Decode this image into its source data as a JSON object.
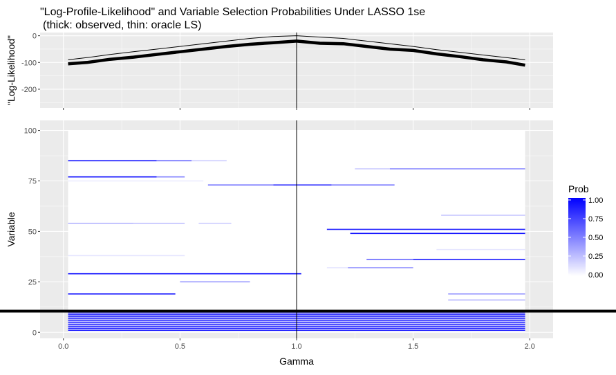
{
  "chart_data": [
    {
      "type": "line",
      "title": "\"Log-Profile-Likelihood\" and Variable Selection Probabilities Under LASSO 1se",
      "subtitle": "(thick: observed, thin: oracle LS)",
      "ylabel": "\"Log-Likelihood\"",
      "xlim": [
        -0.1,
        2.1
      ],
      "ylim": [
        -270,
        12
      ],
      "yticks": [
        0,
        -100,
        -200
      ],
      "ytick_labels": [
        "0",
        "-100",
        "-200"
      ],
      "vline_x": 1.0,
      "grid": true,
      "series": [
        {
          "style": "thick",
          "x": [
            0.02,
            0.1,
            0.2,
            0.3,
            0.4,
            0.5,
            0.6,
            0.7,
            0.8,
            0.9,
            1.0,
            1.1,
            1.2,
            1.3,
            1.4,
            1.5,
            1.6,
            1.7,
            1.8,
            1.9,
            1.98
          ],
          "y": [
            -105,
            -100,
            -88,
            -80,
            -70,
            -60,
            -50,
            -40,
            -32,
            -26,
            -20,
            -28,
            -30,
            -40,
            -50,
            -55,
            -68,
            -78,
            -90,
            -98,
            -110
          ]
        },
        {
          "style": "thin",
          "x": [
            0.02,
            0.1,
            0.2,
            0.3,
            0.4,
            0.5,
            0.6,
            0.7,
            0.8,
            0.9,
            1.0,
            1.1,
            1.2,
            1.3,
            1.4,
            1.5,
            1.6,
            1.7,
            1.8,
            1.9,
            1.98
          ],
          "y": [
            -90,
            -82,
            -70,
            -60,
            -50,
            -40,
            -30,
            -20,
            -10,
            -3,
            0,
            -5,
            -10,
            -20,
            -30,
            -40,
            -52,
            -62,
            -72,
            -82,
            -90
          ]
        }
      ]
    },
    {
      "type": "heatmap",
      "xlabel": "Gamma",
      "ylabel": "Variable",
      "xlim": [
        -0.1,
        2.1
      ],
      "ylim": [
        -3,
        105
      ],
      "xticks": [
        0.0,
        0.5,
        1.0,
        1.5,
        2.0
      ],
      "xtick_labels": [
        "0.0",
        "0.5",
        "1.0",
        "1.5",
        "2.0"
      ],
      "yticks": [
        0,
        25,
        50,
        75,
        100
      ],
      "ytick_labels": [
        "0",
        "25",
        "50",
        "75",
        "100"
      ],
      "hline_y": 10.5,
      "vline_x": 1.0,
      "legend": {
        "title": "Prob",
        "position": "right",
        "ticks": [
          1.0,
          0.75,
          0.5,
          0.25,
          0.0
        ],
        "tick_labels": [
          "1.00",
          "0.75",
          "0.50",
          "0.25",
          "0.00"
        ]
      },
      "rows": [
        {
          "variable": 85,
          "segments": [
            [
              0.02,
              0.4,
              0.95
            ],
            [
              0.4,
              0.55,
              0.6
            ],
            [
              0.55,
              0.7,
              0.2
            ]
          ]
        },
        {
          "variable": 77,
          "segments": [
            [
              0.02,
              0.4,
              0.95
            ],
            [
              0.4,
              0.52,
              0.5
            ]
          ]
        },
        {
          "variable": 75,
          "segments": [
            [
              0.02,
              0.6,
              0.08
            ]
          ]
        },
        {
          "variable": 73,
          "segments": [
            [
              0.62,
              0.9,
              0.6
            ],
            [
              0.9,
              1.15,
              0.9
            ],
            [
              1.15,
              1.42,
              0.6
            ]
          ]
        },
        {
          "variable": 81,
          "segments": [
            [
              1.25,
              1.4,
              0.2
            ],
            [
              1.4,
              1.98,
              0.45
            ]
          ]
        },
        {
          "variable": 58,
          "segments": [
            [
              1.62,
              1.98,
              0.2
            ]
          ]
        },
        {
          "variable": 54,
          "segments": [
            [
              0.02,
              0.3,
              0.3
            ],
            [
              0.3,
              0.52,
              0.25
            ],
            [
              0.58,
              0.72,
              0.2
            ]
          ]
        },
        {
          "variable": 51,
          "segments": [
            [
              1.13,
              1.98,
              0.9
            ]
          ]
        },
        {
          "variable": 49,
          "segments": [
            [
              1.23,
              1.98,
              0.9
            ]
          ]
        },
        {
          "variable": 41,
          "segments": [
            [
              1.6,
              1.98,
              0.1
            ]
          ]
        },
        {
          "variable": 38,
          "segments": [
            [
              0.02,
              0.52,
              0.1
            ]
          ]
        },
        {
          "variable": 36,
          "segments": [
            [
              1.3,
              1.5,
              0.6
            ],
            [
              1.5,
              1.98,
              0.9
            ]
          ]
        },
        {
          "variable": 32,
          "segments": [
            [
              1.13,
              1.22,
              0.1
            ],
            [
              1.22,
              1.5,
              0.4
            ]
          ]
        },
        {
          "variable": 29,
          "segments": [
            [
              0.02,
              1.02,
              0.95
            ]
          ]
        },
        {
          "variable": 25,
          "segments": [
            [
              0.5,
              0.8,
              0.4
            ]
          ]
        },
        {
          "variable": 19,
          "segments": [
            [
              0.02,
              0.48,
              0.9
            ],
            [
              1.65,
              1.98,
              0.4
            ]
          ]
        },
        {
          "variable": 16,
          "segments": [
            [
              1.65,
              1.98,
              0.3
            ]
          ]
        },
        {
          "variable": 1,
          "segments": [
            [
              0.02,
              1.98,
              1.0
            ]
          ]
        },
        {
          "variable": 2,
          "segments": [
            [
              0.02,
              1.98,
              1.0
            ]
          ]
        },
        {
          "variable": 3,
          "segments": [
            [
              0.02,
              1.98,
              1.0
            ]
          ]
        },
        {
          "variable": 4,
          "segments": [
            [
              0.02,
              1.98,
              1.0
            ]
          ]
        },
        {
          "variable": 5,
          "segments": [
            [
              0.02,
              1.98,
              1.0
            ]
          ]
        },
        {
          "variable": 6,
          "segments": [
            [
              0.02,
              1.98,
              1.0
            ]
          ]
        },
        {
          "variable": 7,
          "segments": [
            [
              0.02,
              1.98,
              1.0
            ]
          ]
        },
        {
          "variable": 8,
          "segments": [
            [
              0.02,
              1.98,
              1.0
            ]
          ]
        },
        {
          "variable": 9,
          "segments": [
            [
              0.02,
              1.98,
              1.0
            ]
          ]
        },
        {
          "variable": 10,
          "segments": [
            [
              0.02,
              1.98,
              1.0
            ]
          ]
        }
      ]
    }
  ],
  "colors": {
    "panel_bg": "#ebebeb",
    "grid": "#ffffff",
    "heat_high": "#0000ff",
    "heat_low": "#ffffff"
  }
}
